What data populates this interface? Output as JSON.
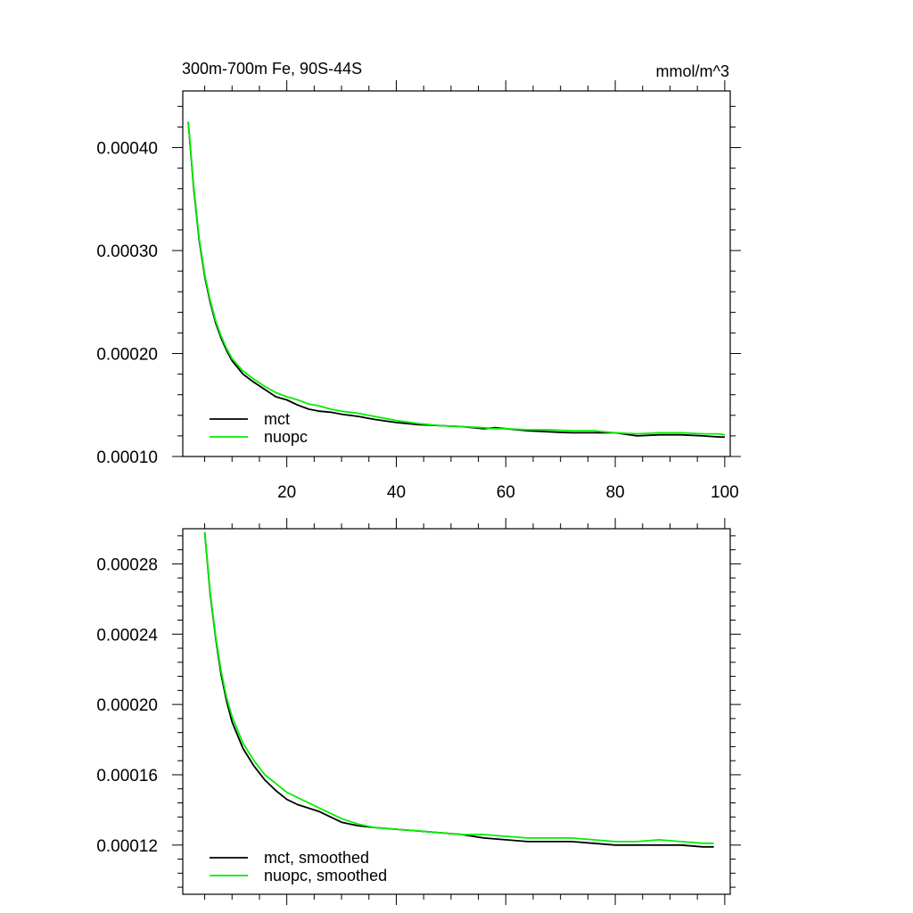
{
  "chart_data": [
    {
      "type": "line",
      "title": "300m-700m Fe, 90S-44S",
      "units_label": "mmol/m^3",
      "xlim": [
        1,
        101
      ],
      "ylim": [
        0.0001,
        0.000455
      ],
      "xticks": [
        20,
        40,
        60,
        80,
        100
      ],
      "xtick_labels": [
        "20",
        "40",
        "60",
        "80",
        "100"
      ],
      "yticks": [
        0.0001,
        0.0002,
        0.0003,
        0.0004
      ],
      "ytick_labels": [
        "0.00010",
        "0.00020",
        "0.00030",
        "0.00040"
      ],
      "grid": false,
      "legend_position": "bottom-left",
      "series": [
        {
          "name": "mct",
          "color": "#000000",
          "x": [
            2,
            3,
            4,
            5,
            6,
            7,
            8,
            9,
            10,
            12,
            14,
            16,
            18,
            20,
            22,
            24,
            26,
            28,
            30,
            33,
            36,
            40,
            44,
            48,
            52,
            56,
            58,
            60,
            64,
            68,
            72,
            76,
            80,
            84,
            88,
            92,
            96,
            99,
            100
          ],
          "y": [
            0.000425,
            0.00036,
            0.00031,
            0.000275,
            0.00025,
            0.00023,
            0.000215,
            0.000203,
            0.000193,
            0.00018,
            0.000172,
            0.000165,
            0.000158,
            0.000155,
            0.00015,
            0.000146,
            0.000144,
            0.000143,
            0.000141,
            0.000139,
            0.000136,
            0.000133,
            0.000131,
            0.00013,
            0.000129,
            0.000127,
            0.000128,
            0.000127,
            0.000125,
            0.000124,
            0.000123,
            0.000123,
            0.000123,
            0.00012,
            0.000121,
            0.000121,
            0.00012,
            0.000119,
            0.000119
          ]
        },
        {
          "name": "nuopc",
          "color": "#00ee00",
          "x": [
            2,
            3,
            4,
            5,
            6,
            7,
            8,
            9,
            10,
            12,
            14,
            16,
            18,
            20,
            22,
            24,
            26,
            28,
            30,
            33,
            36,
            40,
            44,
            48,
            52,
            56,
            58,
            60,
            64,
            68,
            72,
            76,
            80,
            84,
            88,
            92,
            96,
            99,
            100
          ],
          "y": [
            0.000425,
            0.000362,
            0.000312,
            0.000277,
            0.000252,
            0.000232,
            0.000217,
            0.000205,
            0.000195,
            0.000183,
            0.000175,
            0.000168,
            0.000162,
            0.000158,
            0.000155,
            0.000151,
            0.000149,
            0.000146,
            0.000144,
            0.000142,
            0.000139,
            0.000135,
            0.000132,
            0.00013,
            0.000129,
            0.000128,
            0.000127,
            0.000127,
            0.000126,
            0.000126,
            0.000125,
            0.000125,
            0.000123,
            0.000122,
            0.000123,
            0.000123,
            0.000122,
            0.000122,
            0.000121
          ]
        }
      ]
    },
    {
      "type": "line",
      "xlim": [
        1,
        101
      ],
      "ylim": [
        9.2e-05,
        0.0003
      ],
      "xticks": [
        20,
        40,
        60,
        80,
        100
      ],
      "yticks": [
        0.00012,
        0.00016,
        0.0002,
        0.00024,
        0.00028
      ],
      "ytick_labels": [
        "0.00012",
        "0.00016",
        "0.00020",
        "0.00024",
        "0.00028"
      ],
      "grid": false,
      "legend_position": "bottom-left",
      "series": [
        {
          "name": "mct, smoothed",
          "color": "#000000",
          "x": [
            5,
            6,
            7,
            8,
            9,
            10,
            12,
            14,
            16,
            18,
            20,
            22,
            24,
            26,
            28,
            30,
            33,
            36,
            40,
            44,
            48,
            52,
            56,
            60,
            64,
            68,
            72,
            76,
            80,
            84,
            88,
            92,
            96,
            98
          ],
          "y": [
            0.000298,
            0.000263,
            0.000238,
            0.000217,
            0.000202,
            0.00019,
            0.000175,
            0.000165,
            0.000157,
            0.000151,
            0.000146,
            0.000143,
            0.000141,
            0.000139,
            0.000136,
            0.000133,
            0.000131,
            0.00013,
            0.000129,
            0.000128,
            0.000127,
            0.000126,
            0.000124,
            0.000123,
            0.000122,
            0.000122,
            0.000122,
            0.000121,
            0.00012,
            0.00012,
            0.00012,
            0.00012,
            0.000119,
            0.000119
          ]
        },
        {
          "name": "nuopc, smoothed",
          "color": "#00ee00",
          "x": [
            5,
            6,
            7,
            8,
            9,
            10,
            12,
            14,
            16,
            18,
            20,
            22,
            24,
            26,
            28,
            30,
            33,
            36,
            40,
            44,
            48,
            52,
            56,
            60,
            64,
            68,
            72,
            76,
            80,
            84,
            88,
            92,
            96,
            98
          ],
          "y": [
            0.000298,
            0.000264,
            0.000239,
            0.000219,
            0.000204,
            0.000193,
            0.000178,
            0.000168,
            0.00016,
            0.000155,
            0.00015,
            0.000147,
            0.000144,
            0.000141,
            0.000138,
            0.000135,
            0.000132,
            0.00013,
            0.000129,
            0.000128,
            0.000127,
            0.000126,
            0.000126,
            0.000125,
            0.000124,
            0.000124,
            0.000124,
            0.000123,
            0.000122,
            0.000122,
            0.000123,
            0.000122,
            0.000121,
            0.000121
          ]
        }
      ]
    }
  ]
}
